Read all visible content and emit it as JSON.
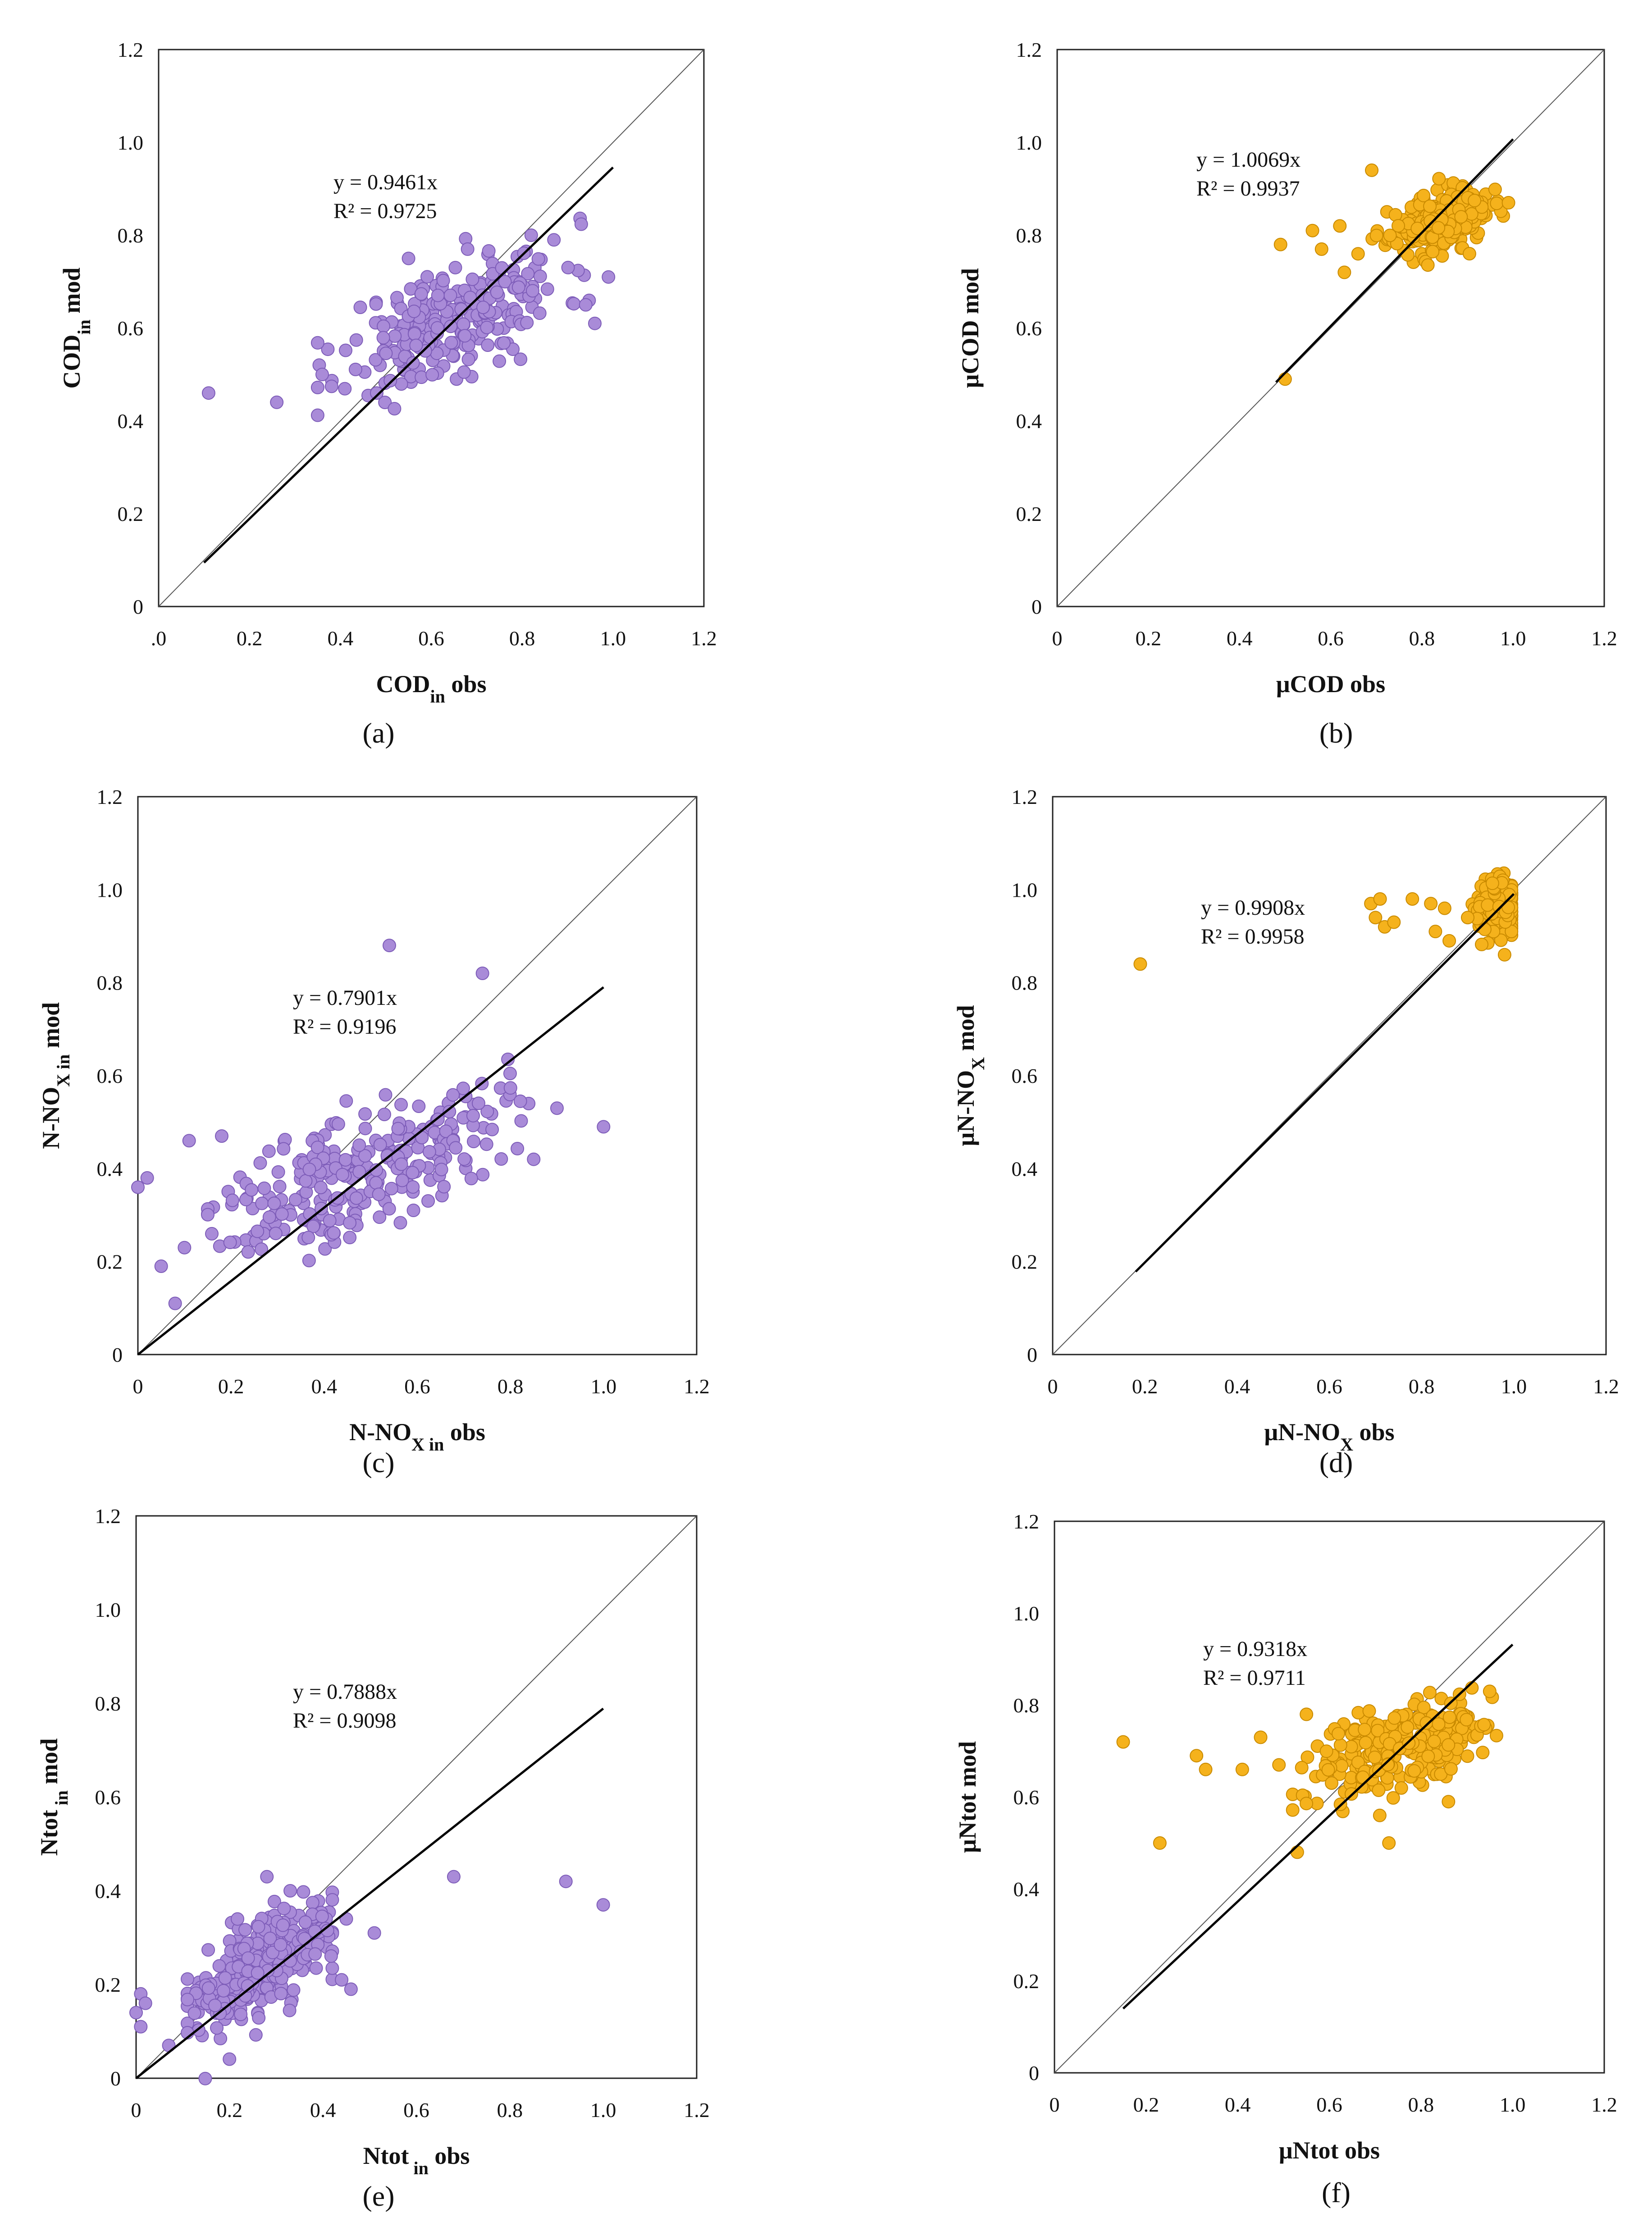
{
  "chart_data": [
    {
      "id": "a",
      "type": "scatter",
      "caption": "(a)",
      "xlabel": {
        "main": "COD",
        "sub": "in",
        "rest": " obs"
      },
      "ylabel": {
        "main": "COD",
        "sub": "in",
        "rest": " mod"
      },
      "xlim": [
        0,
        1.2
      ],
      "ylim": [
        0,
        1.2
      ],
      "xticks": [
        ".0",
        "0.2",
        "0.4",
        "0.6",
        "0.8",
        "1.0",
        "1.2"
      ],
      "yticks": [
        "0",
        "0.2",
        "0.4",
        "0.6",
        "0.8",
        "1.0",
        "1.2"
      ],
      "equation": "y = 0.9461x",
      "r2": "R² = 0.9725",
      "slope": 0.9461,
      "fit_x": [
        0.1,
        1.0
      ],
      "marker_color": "#a98bd8",
      "marker_edge": "#7d5cb8",
      "cloud": {
        "n": 260,
        "x_mean": 0.65,
        "x_sd": 0.12,
        "y_mean": 0.62,
        "y_sd": 0.06,
        "slope": 0.35,
        "x_min": 0.35,
        "x_max": 0.98,
        "seed": 11
      },
      "outliers": [
        [
          0.11,
          0.46
        ],
        [
          0.26,
          0.44
        ],
        [
          0.36,
          0.5
        ],
        [
          0.48,
          0.46
        ],
        [
          0.55,
          0.75
        ],
        [
          0.68,
          0.77
        ],
        [
          0.82,
          0.8
        ],
        [
          0.87,
          0.79
        ],
        [
          0.96,
          0.61
        ],
        [
          0.99,
          0.71
        ],
        [
          0.94,
          0.65
        ]
      ]
    },
    {
      "id": "b",
      "type": "scatter",
      "caption": "(b)",
      "xlabel": {
        "main": "μCOD",
        "sub": "",
        "rest": " obs"
      },
      "ylabel": {
        "main": "μCOD",
        "sub": "",
        "rest": " mod"
      },
      "xlim": [
        0,
        1.2
      ],
      "ylim": [
        0,
        1.2
      ],
      "xticks": [
        "0",
        "0.2",
        "0.4",
        "0.6",
        "0.8",
        "1.0",
        "1.2"
      ],
      "yticks": [
        "0",
        "0.2",
        "0.4",
        "0.6",
        "0.8",
        "1.0",
        "1.2"
      ],
      "equation": "y = 1.0069x",
      "r2": "R² = 0.9937",
      "slope": 1.0069,
      "fit_x": [
        0.48,
        1.0
      ],
      "marker_color": "#f5b21c",
      "marker_edge": "#c98a00",
      "cloud": {
        "n": 250,
        "x_mean": 0.84,
        "x_sd": 0.055,
        "y_mean": 0.83,
        "y_sd": 0.03,
        "slope": 0.2,
        "x_min": 0.66,
        "x_max": 0.99,
        "seed": 23
      },
      "outliers": [
        [
          0.5,
          0.49
        ],
        [
          0.49,
          0.78
        ],
        [
          0.56,
          0.81
        ],
        [
          0.58,
          0.77
        ],
        [
          0.62,
          0.82
        ],
        [
          0.63,
          0.72
        ],
        [
          0.69,
          0.94
        ],
        [
          0.99,
          0.87
        ],
        [
          0.66,
          0.76
        ]
      ]
    },
    {
      "id": "c",
      "type": "scatter",
      "caption": "(c)",
      "xlabel": {
        "main": "N-NO",
        "sub": "X in",
        "rest": " obs"
      },
      "ylabel": {
        "main": "N-NO",
        "sub": "X in",
        "rest": " mod"
      },
      "xlim": [
        0,
        1.2
      ],
      "ylim": [
        0,
        1.2
      ],
      "xticks": [
        "0",
        "0.2",
        "0.4",
        "0.6",
        "0.8",
        "1.0",
        "1.2"
      ],
      "yticks": [
        "0",
        "0.2",
        "0.4",
        "0.6",
        "0.8",
        "1.0",
        "1.2"
      ],
      "equation": "y = 0.7901x",
      "r2": "R² = 0.9196",
      "slope": 0.7901,
      "fit_x": [
        0.0,
        1.0
      ],
      "marker_color": "#a98bd8",
      "marker_edge": "#7d5cb8",
      "cloud": {
        "n": 270,
        "x_mean": 0.48,
        "x_sd": 0.15,
        "y_mean": 0.4,
        "y_sd": 0.065,
        "slope": 0.38,
        "x_min": 0.15,
        "x_max": 0.86,
        "seed": 37
      },
      "outliers": [
        [
          0.0,
          0.36
        ],
        [
          0.02,
          0.38
        ],
        [
          0.05,
          0.19
        ],
        [
          0.08,
          0.11
        ],
        [
          0.1,
          0.23
        ],
        [
          0.11,
          0.46
        ],
        [
          0.18,
          0.47
        ],
        [
          0.54,
          0.88
        ],
        [
          0.74,
          0.82
        ],
        [
          0.9,
          0.53
        ],
        [
          1.0,
          0.49
        ],
        [
          0.85,
          0.42
        ]
      ]
    },
    {
      "id": "d",
      "type": "scatter",
      "caption": "(d)",
      "xlabel": {
        "main": "μN-NO",
        "sub": "X",
        "rest": " obs"
      },
      "ylabel": {
        "main": "μN-NO",
        "sub": "X",
        "rest": " mod"
      },
      "xlim": [
        0,
        1.2
      ],
      "ylim": [
        0,
        1.2
      ],
      "xticks": [
        "0",
        "0.2",
        "0.4",
        "0.6",
        "0.8",
        "1.0",
        "1.2"
      ],
      "yticks": [
        "0",
        "0.2",
        "0.4",
        "0.6",
        "0.8",
        "1.0",
        "1.2"
      ],
      "equation": "y = 0.9908x",
      "r2": "R² = 0.9958",
      "slope": 0.9908,
      "fit_x": [
        0.18,
        1.0
      ],
      "marker_color": "#f5b21c",
      "marker_edge": "#c98a00",
      "cloud": {
        "n": 210,
        "x_mean": 0.965,
        "x_sd": 0.025,
        "y_mean": 0.965,
        "y_sd": 0.032,
        "slope": 0.1,
        "x_min": 0.91,
        "x_max": 0.995,
        "seed": 51
      },
      "outliers": [
        [
          0.19,
          0.84
        ],
        [
          0.69,
          0.97
        ],
        [
          0.7,
          0.94
        ],
        [
          0.71,
          0.98
        ],
        [
          0.72,
          0.92
        ],
        [
          0.74,
          0.93
        ],
        [
          0.78,
          0.98
        ],
        [
          0.82,
          0.97
        ],
        [
          0.85,
          0.96
        ],
        [
          0.83,
          0.91
        ],
        [
          0.86,
          0.89
        ],
        [
          0.9,
          0.94
        ],
        [
          0.98,
          0.86
        ]
      ]
    },
    {
      "id": "e",
      "type": "scatter",
      "caption": "(e)",
      "xlabel": {
        "main": "Ntot",
        "sub": " in",
        "rest": " obs"
      },
      "ylabel": {
        "main": "Ntot",
        "sub": " in",
        "rest": " mod"
      },
      "xlim": [
        0,
        1.2
      ],
      "ylim": [
        0,
        1.2
      ],
      "xticks": [
        "0",
        "0.2",
        "0.4",
        "0.6",
        "0.8",
        "1.0",
        "1.2"
      ],
      "yticks": [
        "0",
        "0.2",
        "0.4",
        "0.6",
        "0.8",
        "1.0",
        "1.2"
      ],
      "equation": "y = 0.7888x",
      "r2": "R² = 0.9098",
      "slope": 0.7888,
      "fit_x": [
        0.0,
        1.0
      ],
      "marker_color": "#a98bd8",
      "marker_edge": "#7d5cb8",
      "cloud": {
        "n": 290,
        "x_mean": 0.26,
        "x_sd": 0.075,
        "y_mean": 0.23,
        "y_sd": 0.05,
        "slope": 0.55,
        "x_min": 0.11,
        "x_max": 0.42,
        "seed": 67
      },
      "outliers": [
        [
          0.0,
          0.14
        ],
        [
          0.01,
          0.11
        ],
        [
          0.01,
          0.18
        ],
        [
          0.02,
          0.16
        ],
        [
          0.07,
          0.07
        ],
        [
          0.28,
          0.43
        ],
        [
          0.33,
          0.4
        ],
        [
          0.45,
          0.34
        ],
        [
          0.51,
          0.31
        ],
        [
          0.68,
          0.43
        ],
        [
          0.92,
          0.42
        ],
        [
          1.0,
          0.37
        ],
        [
          0.44,
          0.21
        ],
        [
          0.46,
          0.19
        ]
      ]
    },
    {
      "id": "f",
      "type": "scatter",
      "caption": "(f)",
      "xlabel": {
        "main": "μNtot",
        "sub": "",
        "rest": " obs"
      },
      "ylabel": {
        "main": "μNtot",
        "sub": "",
        "rest": " mod"
      },
      "xlim": [
        0,
        1.2
      ],
      "ylim": [
        0,
        1.2
      ],
      "xticks": [
        "0",
        "0.2",
        "0.4",
        "0.6",
        "0.8",
        "1.0",
        "1.2"
      ],
      "yticks": [
        "0",
        "0.2",
        "0.4",
        "0.6",
        "0.8",
        "1.0",
        "1.2"
      ],
      "equation": "y = 0.9318x",
      "r2": "R² = 0.9711",
      "slope": 0.9318,
      "fit_x": [
        0.15,
        1.0
      ],
      "marker_color": "#f5b21c",
      "marker_edge": "#c98a00",
      "cloud": {
        "n": 270,
        "x_mean": 0.75,
        "x_sd": 0.1,
        "y_mean": 0.71,
        "y_sd": 0.045,
        "slope": 0.25,
        "x_min": 0.52,
        "x_max": 0.98,
        "seed": 79
      },
      "outliers": [
        [
          0.15,
          0.72
        ],
        [
          0.23,
          0.5
        ],
        [
          0.31,
          0.69
        ],
        [
          0.33,
          0.66
        ],
        [
          0.41,
          0.66
        ],
        [
          0.45,
          0.73
        ],
        [
          0.49,
          0.67
        ],
        [
          0.53,
          0.48
        ],
        [
          0.55,
          0.78
        ],
        [
          0.73,
          0.5
        ],
        [
          0.86,
          0.59
        ],
        [
          0.95,
          0.83
        ],
        [
          0.71,
          0.56
        ]
      ]
    }
  ]
}
